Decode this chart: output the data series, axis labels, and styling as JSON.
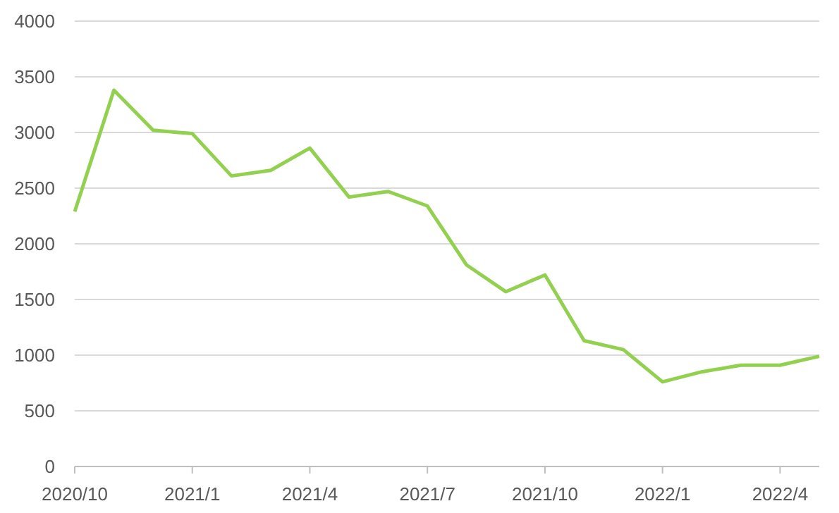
{
  "chart_data": {
    "type": "line",
    "categories": [
      "2020/10",
      null,
      null,
      "2021/1",
      null,
      null,
      "2021/4",
      null,
      null,
      "2021/7",
      null,
      null,
      "2021/10",
      null,
      null,
      "2022/1",
      null,
      null,
      "2022/4",
      null
    ],
    "series": [
      {
        "color": "#92d050",
        "values": [
          2290,
          3380,
          3020,
          2990,
          2610,
          2660,
          2860,
          2420,
          2470,
          2340,
          1810,
          1570,
          1720,
          1130,
          1050,
          760,
          850,
          910,
          910,
          990
        ]
      }
    ],
    "ylim": [
      0,
      4000
    ],
    "yticks": [
      0,
      500,
      1000,
      1500,
      2000,
      2500,
      3000,
      3500,
      4000
    ],
    "grid": "y",
    "marker": "none",
    "line_style": "solid"
  }
}
